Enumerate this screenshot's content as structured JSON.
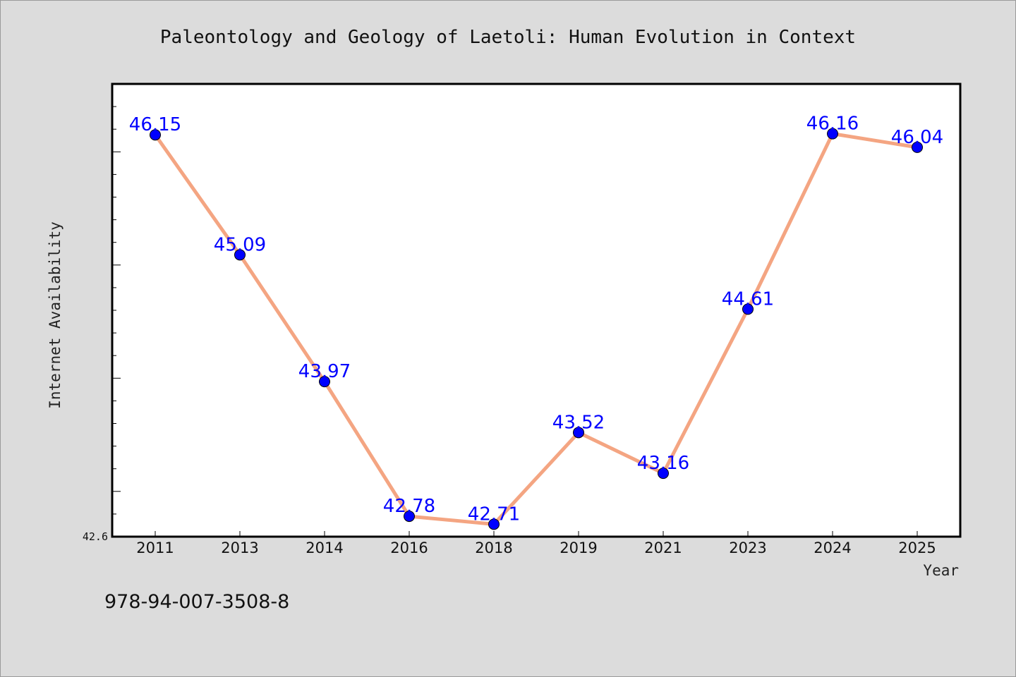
{
  "chart_data": {
    "type": "line",
    "title": "Paleontology and Geology of Laetoli: Human Evolution in Context",
    "xlabel": "Year",
    "ylabel": "Internet Availability",
    "categories": [
      "2011",
      "2013",
      "2014",
      "2016",
      "2018",
      "2019",
      "2021",
      "2023",
      "2024",
      "2025"
    ],
    "series": [
      {
        "values": [
          46.15,
          45.09,
          43.97,
          42.78,
          42.71,
          43.52,
          43.16,
          44.61,
          46.16,
          46.04
        ],
        "labels": [
          "46.15",
          "45.09",
          "43.97",
          "42.78",
          "42.71",
          "43.52",
          "43.16",
          "44.61",
          "46.16",
          "46.04"
        ]
      }
    ],
    "ylim": [
      42.6,
      46.6
    ],
    "yticks_labeled": [
      "42.6"
    ],
    "grid": false,
    "colors": {
      "line": "#f4a582",
      "marker": "#0000ff",
      "data_label": "#0000ff",
      "background": "#dcdcdc",
      "plot_background": "#ffffff"
    }
  },
  "footer": {
    "isbn": "978-94-007-3508-8"
  }
}
